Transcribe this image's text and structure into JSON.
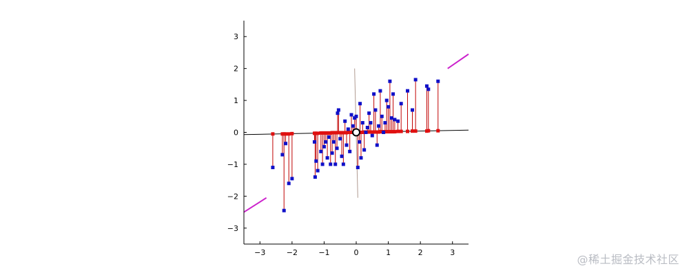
{
  "chart_data": {
    "type": "scatter",
    "title": "",
    "xlabel": "",
    "ylabel": "",
    "xlim": [
      -3.5,
      3.5
    ],
    "ylim": [
      -3.5,
      3.5
    ],
    "xticks": [
      -3,
      -2,
      -1,
      0,
      1,
      2,
      3
    ],
    "yticks": [
      -3,
      -2,
      -1,
      0,
      1,
      2,
      3
    ],
    "grid": false,
    "colors": {
      "points": "#1010c8",
      "projections": "#e01010",
      "residuals": "#c00000",
      "principal_axis": "#000000",
      "secondary_axis": "#b09a90",
      "extension_segments": "#cc22cc",
      "center": "#000000"
    },
    "points": [
      [
        -2.6,
        -1.1
      ],
      [
        -2.3,
        -0.7
      ],
      [
        -2.25,
        -2.45
      ],
      [
        -2.2,
        -0.35
      ],
      [
        -2.1,
        -1.6
      ],
      [
        -2.0,
        -1.45
      ],
      [
        -1.3,
        -0.3
      ],
      [
        -1.28,
        -1.4
      ],
      [
        -1.25,
        -0.9
      ],
      [
        -1.2,
        -1.2
      ],
      [
        -1.1,
        -0.6
      ],
      [
        -1.05,
        -1.0
      ],
      [
        -1.0,
        -0.45
      ],
      [
        -0.95,
        -0.3
      ],
      [
        -0.9,
        -0.8
      ],
      [
        -0.85,
        -0.15
      ],
      [
        -0.8,
        -1.0
      ],
      [
        -0.75,
        -0.65
      ],
      [
        -0.7,
        -0.3
      ],
      [
        -0.65,
        -1.0
      ],
      [
        -0.6,
        -0.5
      ],
      [
        -0.58,
        0.6
      ],
      [
        -0.55,
        0.7
      ],
      [
        -0.5,
        -0.2
      ],
      [
        -0.45,
        -0.75
      ],
      [
        -0.4,
        -1.0
      ],
      [
        -0.35,
        0.35
      ],
      [
        -0.3,
        -0.4
      ],
      [
        -0.25,
        0.1
      ],
      [
        -0.2,
        -0.6
      ],
      [
        -0.15,
        0.55
      ],
      [
        -0.1,
        0.2
      ],
      [
        -0.05,
        0.45
      ],
      [
        0.0,
        0.5
      ],
      [
        0.05,
        -1.1
      ],
      [
        0.1,
        -0.3
      ],
      [
        0.12,
        0.9
      ],
      [
        0.15,
        -0.8
      ],
      [
        0.2,
        0.3
      ],
      [
        0.25,
        -0.55
      ],
      [
        0.3,
        0.0
      ],
      [
        0.35,
        0.15
      ],
      [
        0.4,
        0.6
      ],
      [
        0.45,
        0.3
      ],
      [
        0.5,
        -0.1
      ],
      [
        0.55,
        1.2
      ],
      [
        0.6,
        0.7
      ],
      [
        0.65,
        -0.4
      ],
      [
        0.7,
        0.2
      ],
      [
        0.75,
        1.3
      ],
      [
        0.8,
        0.5
      ],
      [
        0.85,
        0.0
      ],
      [
        0.9,
        0.3
      ],
      [
        0.95,
        1.0
      ],
      [
        1.0,
        0.8
      ],
      [
        1.05,
        1.6
      ],
      [
        1.1,
        0.45
      ],
      [
        1.15,
        1.2
      ],
      [
        1.2,
        0.4
      ],
      [
        1.3,
        0.35
      ],
      [
        1.4,
        0.9
      ],
      [
        1.6,
        1.3
      ],
      [
        1.75,
        0.7
      ],
      [
        1.85,
        1.65
      ],
      [
        2.2,
        1.45
      ],
      [
        2.25,
        1.35
      ],
      [
        2.55,
        1.6
      ]
    ],
    "projections": [
      [
        -2.6,
        -0.05
      ],
      [
        -2.3,
        -0.05
      ],
      [
        -2.25,
        -0.05
      ],
      [
        -2.2,
        -0.05
      ],
      [
        -2.1,
        -0.05
      ],
      [
        -2.0,
        -0.04
      ],
      [
        -1.3,
        -0.03
      ],
      [
        -1.28,
        -0.03
      ],
      [
        -1.25,
        -0.03
      ],
      [
        -1.2,
        -0.03
      ],
      [
        -1.1,
        -0.02
      ],
      [
        -1.05,
        -0.02
      ],
      [
        -1.0,
        -0.02
      ],
      [
        -0.95,
        -0.02
      ],
      [
        -0.9,
        -0.02
      ],
      [
        -0.85,
        -0.02
      ],
      [
        -0.8,
        -0.02
      ],
      [
        -0.75,
        -0.01
      ],
      [
        -0.7,
        -0.01
      ],
      [
        -0.65,
        -0.01
      ],
      [
        -0.6,
        -0.01
      ],
      [
        -0.58,
        -0.01
      ],
      [
        -0.55,
        -0.01
      ],
      [
        -0.5,
        -0.01
      ],
      [
        -0.45,
        -0.01
      ],
      [
        -0.4,
        -0.01
      ],
      [
        -0.35,
        -0.01
      ],
      [
        -0.3,
        -0.01
      ],
      [
        -0.25,
        0.0
      ],
      [
        -0.2,
        0.0
      ],
      [
        -0.15,
        0.0
      ],
      [
        -0.1,
        0.0
      ],
      [
        -0.05,
        0.0
      ],
      [
        0.0,
        0.0
      ],
      [
        0.05,
        0.0
      ],
      [
        0.1,
        0.0
      ],
      [
        0.12,
        0.0
      ],
      [
        0.15,
        0.0
      ],
      [
        0.2,
        0.0
      ],
      [
        0.25,
        0.01
      ],
      [
        0.3,
        0.01
      ],
      [
        0.35,
        0.01
      ],
      [
        0.4,
        0.01
      ],
      [
        0.45,
        0.01
      ],
      [
        0.5,
        0.01
      ],
      [
        0.55,
        0.01
      ],
      [
        0.6,
        0.01
      ],
      [
        0.65,
        0.01
      ],
      [
        0.7,
        0.01
      ],
      [
        0.75,
        0.02
      ],
      [
        0.8,
        0.02
      ],
      [
        0.85,
        0.02
      ],
      [
        0.9,
        0.02
      ],
      [
        0.95,
        0.02
      ],
      [
        1.0,
        0.02
      ],
      [
        1.05,
        0.02
      ],
      [
        1.1,
        0.02
      ],
      [
        1.15,
        0.02
      ],
      [
        1.2,
        0.02
      ],
      [
        1.3,
        0.03
      ],
      [
        1.4,
        0.03
      ],
      [
        1.6,
        0.03
      ],
      [
        1.75,
        0.04
      ],
      [
        1.85,
        0.04
      ],
      [
        2.2,
        0.04
      ],
      [
        2.25,
        0.05
      ],
      [
        2.55,
        0.05
      ]
    ],
    "principal_axis": [
      [
        -3.5,
        -0.07
      ],
      [
        3.5,
        0.07
      ]
    ],
    "secondary_axis": [
      [
        -0.05,
        2.0
      ],
      [
        0.05,
        -2.05
      ]
    ],
    "extension_segments": [
      [
        [
          -3.5,
          -2.5
        ],
        [
          -2.8,
          -2.05
        ]
      ],
      [
        [
          2.85,
          2.0
        ],
        [
          3.5,
          2.45
        ]
      ]
    ],
    "center": [
      0.0,
      0.0
    ]
  },
  "watermark": "@稀土掘金技术社区"
}
